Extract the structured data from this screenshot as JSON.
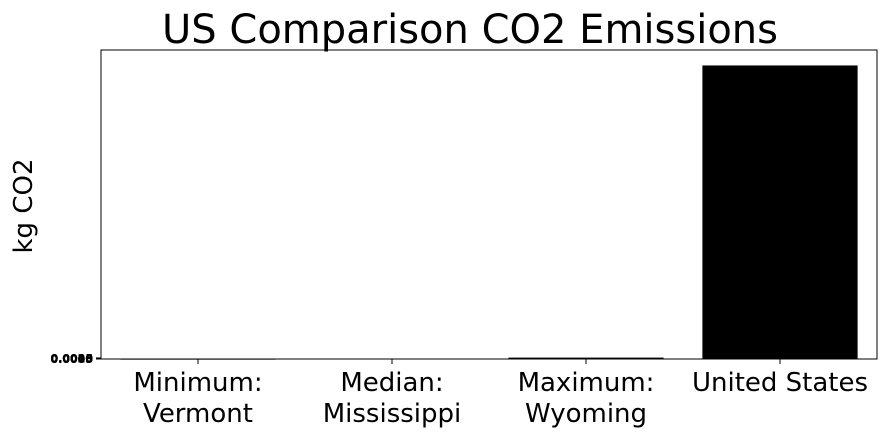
{
  "chart_data": {
    "type": "bar",
    "title": "US Comparison CO2 Emissions",
    "xlabel": "",
    "ylabel": "kg CO2",
    "categories": [
      "Minimum:\nVermont",
      "Median:\nMississippi",
      "Maximum:\nWyoming",
      "United States"
    ],
    "values": [
      0.0005,
      0.0012,
      0.0045,
      0.95
    ],
    "ylim": [
      0,
      1.0
    ],
    "ytick_labels": [
      "0.0000",
      "0.0005",
      "0.0010",
      "0.0015",
      "0.0020",
      "0.0025",
      "0.0030",
      "0.0035"
    ],
    "bar_color": "#000000",
    "grid": false,
    "legend": "none"
  }
}
